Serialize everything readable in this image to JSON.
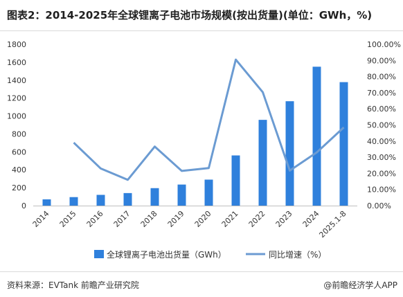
{
  "title": "图表2：2014-2025年全球锂离子电池市场规模(按出货量)(单位：GWh，%)",
  "footer": {
    "source": "资料来源：EVTank 前瞻产业研究院",
    "brand": "@前瞻经济学人APP"
  },
  "chart_data": {
    "type": "bar",
    "categories": [
      "2014",
      "2015",
      "2016",
      "2017",
      "2018",
      "2019",
      "2020",
      "2021",
      "2022",
      "2023",
      "2024",
      "2025.1-8"
    ],
    "series": [
      {
        "name": "全球锂离子电池出货量（GWh）",
        "type": "bar",
        "axis": "left",
        "color": "#2f80dc",
        "values": [
          70,
          95,
          120,
          140,
          195,
          235,
          290,
          560,
          957,
          1165,
          1550,
          1378
        ]
      },
      {
        "name": "同比增速（%）",
        "type": "line",
        "axis": "right",
        "color": "#6b9bd2",
        "values": [
          null,
          39,
          23,
          16,
          36.6,
          21.5,
          23.3,
          90.5,
          70.3,
          21.7,
          33,
          48.5
        ]
      }
    ],
    "ylim_left": [
      0,
      1800
    ],
    "yticks_left": [
      "0",
      "200",
      "400",
      "600",
      "800",
      "1000",
      "1200",
      "1400",
      "1600",
      "1800"
    ],
    "ylim_right": [
      0,
      100
    ],
    "yticks_right": [
      "0.00%",
      "10.00%",
      "20.00%",
      "30.00%",
      "40.00%",
      "50.00%",
      "60.00%",
      "70.00%",
      "80.00%",
      "90.00%",
      "100.00%"
    ],
    "legend_position": "bottom",
    "grid": false
  }
}
